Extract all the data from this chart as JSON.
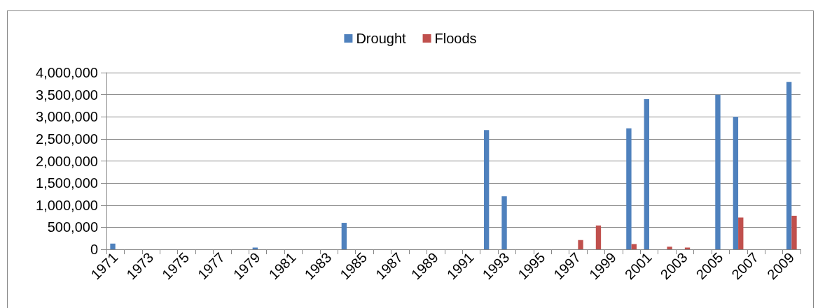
{
  "chart_data": {
    "type": "bar",
    "categories": [
      "1971",
      null,
      "1973",
      null,
      "1975",
      null,
      "1977",
      null,
      "1979",
      null,
      "1981",
      null,
      "1983",
      null,
      "1985",
      null,
      "1987",
      null,
      "1989",
      null,
      "1991",
      null,
      "1993",
      null,
      "1995",
      null,
      "1997",
      null,
      "1999",
      null,
      "2001",
      null,
      "2003",
      null,
      "2005",
      null,
      "2007",
      null,
      "2009"
    ],
    "series": [
      {
        "name": "Drought",
        "color": "#4f81bd",
        "values": [
          130000,
          null,
          null,
          null,
          null,
          null,
          null,
          null,
          40000,
          null,
          null,
          null,
          null,
          600000,
          null,
          null,
          null,
          null,
          null,
          null,
          null,
          2700000,
          1200000,
          null,
          null,
          null,
          null,
          null,
          null,
          2740000,
          3400000,
          null,
          null,
          null,
          3500000,
          3000000,
          null,
          null,
          3790000
        ]
      },
      {
        "name": "Floods",
        "color": "#c0504d",
        "values": [
          null,
          null,
          null,
          null,
          null,
          null,
          null,
          null,
          null,
          null,
          null,
          null,
          null,
          null,
          null,
          null,
          null,
          null,
          null,
          null,
          null,
          null,
          null,
          null,
          null,
          null,
          210000,
          540000,
          null,
          120000,
          null,
          60000,
          40000,
          null,
          null,
          720000,
          null,
          null,
          760000
        ]
      }
    ],
    "ylim": [
      0,
      4000000
    ],
    "yticks": [
      {
        "value": 0,
        "label": "0"
      },
      {
        "value": 500000,
        "label": "500,000"
      },
      {
        "value": 1000000,
        "label": "1,000,000"
      },
      {
        "value": 1500000,
        "label": "1,500,000"
      },
      {
        "value": 2000000,
        "label": "2,000,000"
      },
      {
        "value": 2500000,
        "label": "2,500,000"
      },
      {
        "value": 3000000,
        "label": "3,000,000"
      },
      {
        "value": 3500000,
        "label": "3,500,000"
      },
      {
        "value": 4000000,
        "label": "4,000,000"
      }
    ],
    "grid": "y",
    "legend": "top"
  }
}
